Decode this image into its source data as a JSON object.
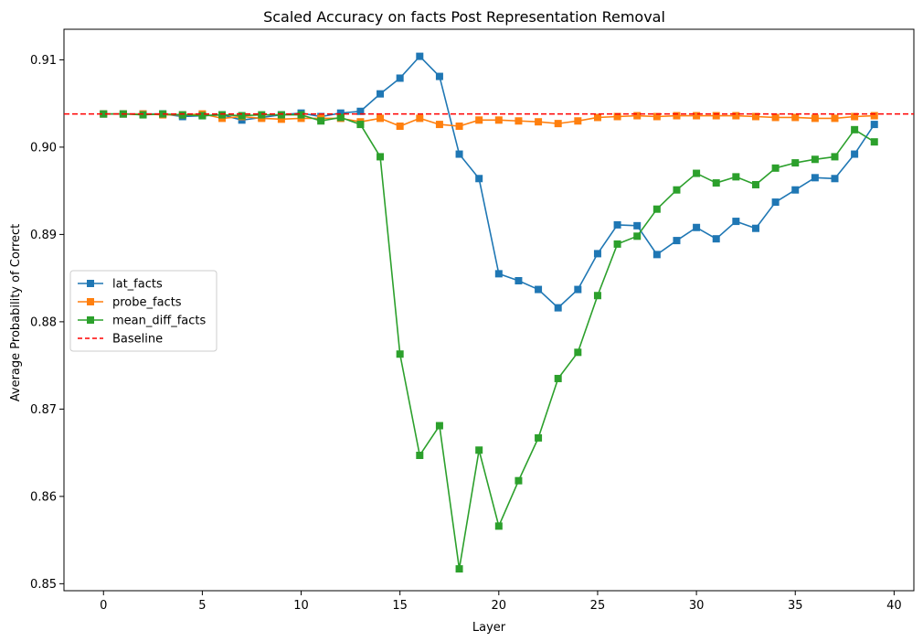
{
  "chart_data": {
    "type": "line",
    "title": "Scaled Accuracy on facts Post Representation Removal",
    "xlabel": "Layer",
    "ylabel": "Average Probability of Correct",
    "xlim": [
      -2,
      41
    ],
    "ylim": [
      0.8492,
      0.9135
    ],
    "xticks": [
      0,
      5,
      10,
      15,
      20,
      25,
      30,
      35,
      40
    ],
    "yticks": [
      0.85,
      0.86,
      0.87,
      0.88,
      0.89,
      0.9,
      0.91
    ],
    "ytick_labels": [
      "0.85",
      "0.86",
      "0.87",
      "0.88",
      "0.89",
      "0.90",
      "0.91"
    ],
    "grid": false,
    "legend_position": "center-left",
    "x": [
      0,
      1,
      2,
      3,
      4,
      5,
      6,
      7,
      8,
      9,
      10,
      11,
      12,
      13,
      14,
      15,
      16,
      17,
      18,
      19,
      20,
      21,
      22,
      23,
      24,
      25,
      26,
      27,
      28,
      29,
      30,
      31,
      32,
      33,
      34,
      35,
      36,
      37,
      38,
      39
    ],
    "series": [
      {
        "name": "lat_facts",
        "color": "#1f77b4",
        "marker": "square",
        "values": [
          0.9038,
          0.9038,
          0.9038,
          0.9038,
          0.9035,
          0.9036,
          0.9037,
          0.9031,
          0.9034,
          0.9037,
          0.9039,
          0.9035,
          0.9039,
          0.9041,
          0.9061,
          0.9079,
          0.9104,
          0.9081,
          0.8992,
          0.8964,
          0.8855,
          0.8847,
          0.8837,
          0.8816,
          0.8837,
          0.8878,
          0.8911,
          0.891,
          0.8877,
          0.8893,
          0.8908,
          0.8895,
          0.8915,
          0.8907,
          0.8937,
          0.8951,
          0.8965,
          0.8964,
          0.8992,
          0.9026
        ]
      },
      {
        "name": "probe_facts",
        "color": "#ff7f0e",
        "marker": "square",
        "values": [
          0.9038,
          0.9038,
          0.9038,
          0.9037,
          0.9037,
          0.9038,
          0.9033,
          0.9035,
          0.9033,
          0.9032,
          0.9033,
          0.9033,
          0.9033,
          0.9029,
          0.9033,
          0.9024,
          0.9033,
          0.9026,
          0.9024,
          0.9031,
          0.9031,
          0.903,
          0.9029,
          0.9027,
          0.903,
          0.9034,
          0.9035,
          0.9036,
          0.9035,
          0.9036,
          0.9036,
          0.9036,
          0.9036,
          0.9035,
          0.9034,
          0.9034,
          0.9033,
          0.9033,
          0.9035,
          0.9036
        ]
      },
      {
        "name": "mean_diff_facts",
        "color": "#2ca02c",
        "marker": "square",
        "values": [
          0.9038,
          0.9038,
          0.9037,
          0.9038,
          0.9037,
          0.9036,
          0.9037,
          0.9036,
          0.9037,
          0.9037,
          0.9037,
          0.903,
          0.9034,
          0.9026,
          0.8989,
          0.8763,
          0.8647,
          0.8681,
          0.8517,
          0.8653,
          0.8566,
          0.8618,
          0.8667,
          0.8735,
          0.8765,
          0.883,
          0.8889,
          0.8898,
          0.8929,
          0.8951,
          0.897,
          0.8959,
          0.8966,
          0.8957,
          0.8976,
          0.8982,
          0.8986,
          0.8989,
          0.902,
          0.9006
        ]
      }
    ],
    "baseline": {
      "name": "Baseline",
      "value": 0.9038,
      "color": "#ff0000",
      "style": "dashed"
    }
  }
}
